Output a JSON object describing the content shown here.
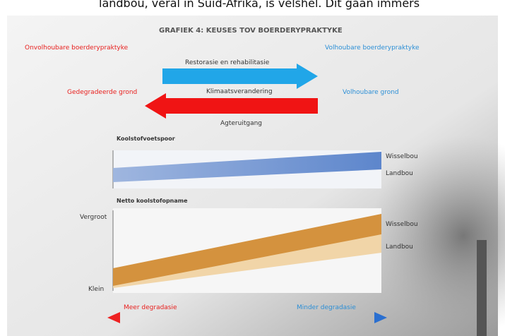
{
  "caption": "landbou, veral in Suid-Afrika, is velshel. Dit gaan immers",
  "figure": {
    "title": "GRAFIEK 4: KEUSES TOV BOERDERYPRAKTYKE",
    "left_heading": "Onvolhoubare boerderypraktyke",
    "right_heading": "Volhoubare boerderypraktyke",
    "arrow_right_label": "Restorasie en rehabilitasie",
    "arrow_left_label": "Klimaatsverandering",
    "left_state": "Gedegradeerde grond",
    "right_state": "Volhoubare grond",
    "below_arrows": "Agteruitgang",
    "top_panel": {
      "title": "Koolstofvoetspoor",
      "upper_label": "Wisselbou",
      "lower_label": "Landbou"
    },
    "bottom_panel": {
      "title": "Netto koolstofopname",
      "high": "Vergroot",
      "low": "Klein",
      "upper_label": "Wisselbou",
      "lower_label": "Landbou"
    },
    "scale_left": "Meer degradasie",
    "scale_right": "Minder degradasie"
  }
}
